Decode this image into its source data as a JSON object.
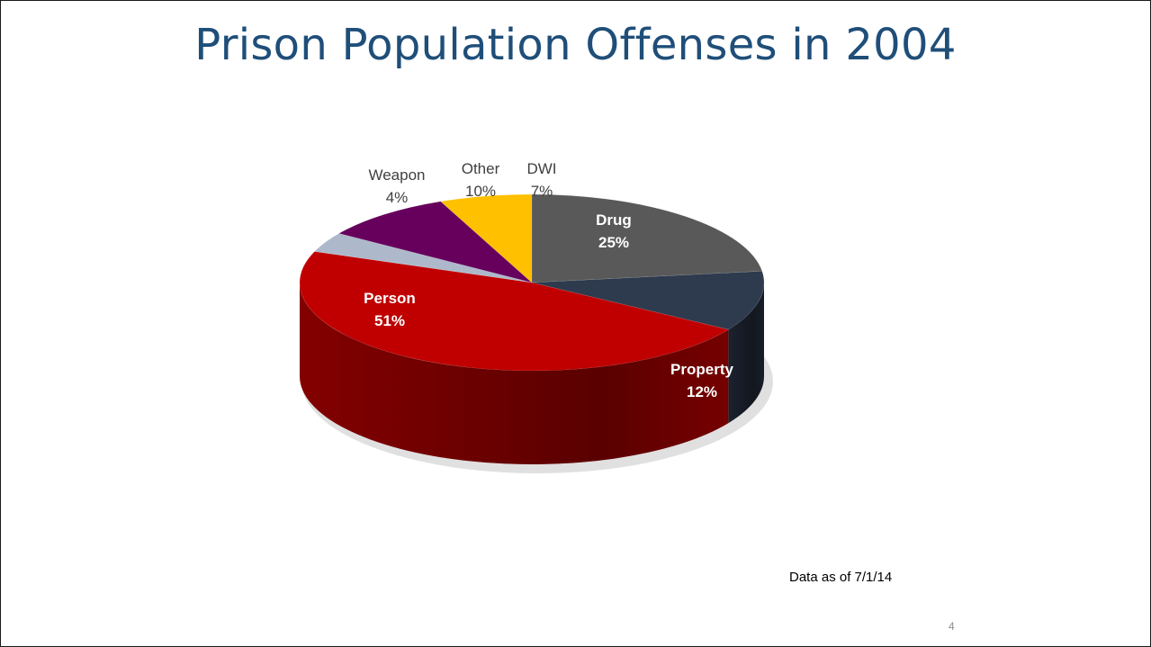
{
  "slide": {
    "title": "Prison Population Offenses in 2004",
    "footnote": "Data as of 7/1/14",
    "page_number": "4"
  },
  "chart_data": {
    "type": "pie",
    "style": "3d",
    "title": "Prison Population Offenses in 2004",
    "slices": [
      {
        "label": "Drug",
        "value": 25,
        "display": "25%",
        "color": "#595959",
        "side_color": "#3a3a3a",
        "label_color": "#ffffff"
      },
      {
        "label": "Property",
        "value": 12,
        "display": "12%",
        "color": "#2e3a4d",
        "side_color": "#1c2330",
        "label_color": "#ffffff"
      },
      {
        "label": "Person",
        "value": 51,
        "display": "51%",
        "color": "#c00000",
        "side_color": "#8a0000",
        "label_color": "#ffffff"
      },
      {
        "label": "Weapon",
        "value": 4,
        "display": "4%",
        "color": "#adb9ca",
        "side_color": "#8592a4",
        "label_color": "#404040"
      },
      {
        "label": "Other",
        "value": 10,
        "display": "10%",
        "color": "#66005c",
        "side_color": "#40003a",
        "label_color": "#404040"
      },
      {
        "label": "DWI",
        "value": 7,
        "display": "7%",
        "color": "#ffc000",
        "side_color": "#c99700",
        "label_color": "#404040"
      }
    ]
  }
}
